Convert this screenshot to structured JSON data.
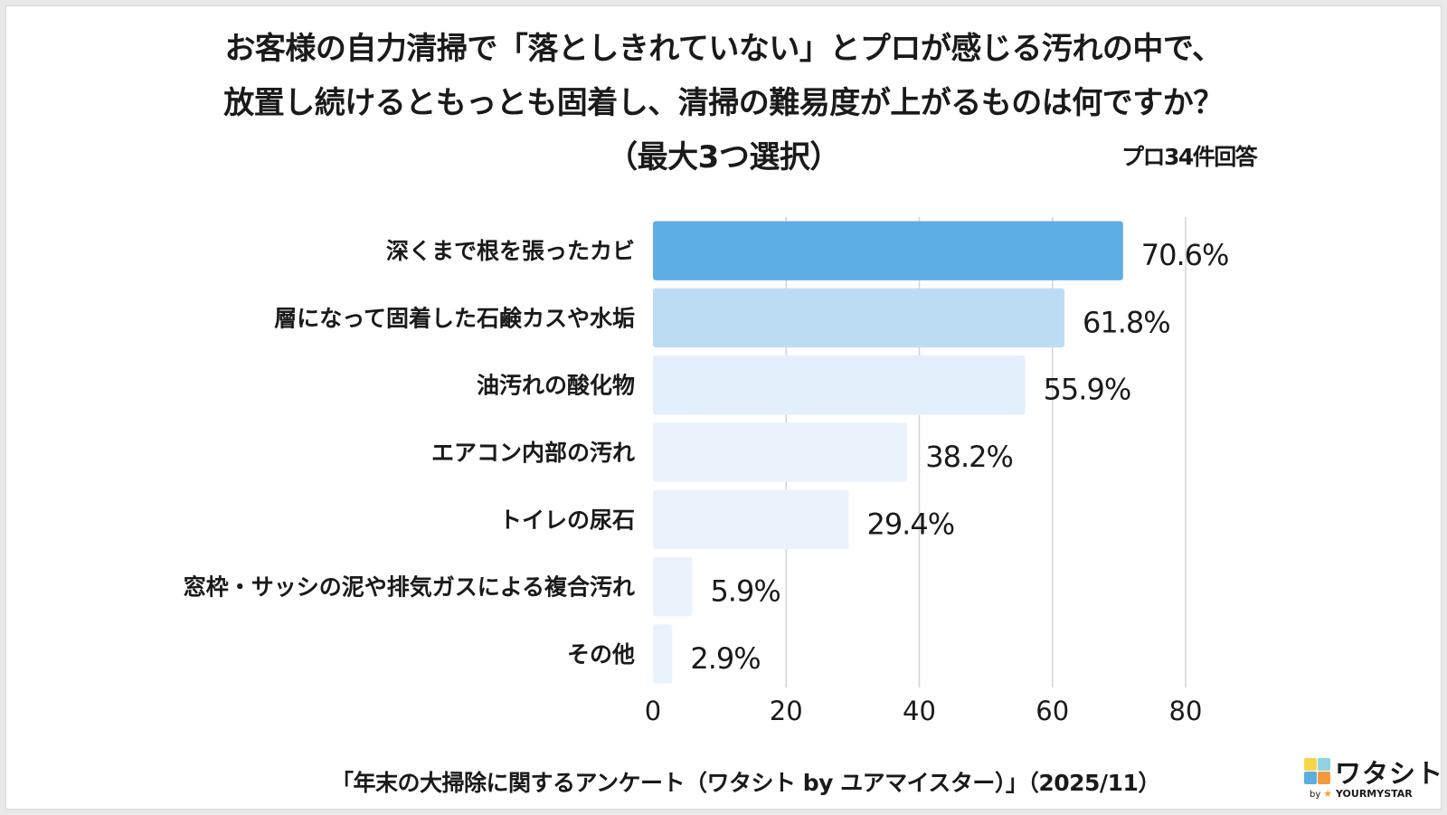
{
  "chart_data": {
    "type": "bar",
    "orientation": "horizontal",
    "title_lines": [
      "お客様の自力清掃で「落としきれていない」とプロが感じる汚れの中で、",
      "放置し続けるともっとも固着し、清掃の難易度が上がるものは何ですか？",
      "（最大3つ選択）"
    ],
    "note": "プロ34件回答",
    "categories": [
      "深くまで根を張ったカビ",
      "層になって固着した石鹸カスや水垢",
      "油汚れの酸化物",
      "エアコン内部の汚れ",
      "トイレの尿石",
      "窓枠・サッシの泥や排気ガスによる複合汚れ",
      "その他"
    ],
    "values": [
      70.6,
      61.8,
      55.9,
      38.2,
      29.4,
      5.9,
      2.9
    ],
    "value_labels": [
      "70.6%",
      "61.8%",
      "55.9%",
      "38.2%",
      "29.4%",
      "5.9%",
      "2.9%"
    ],
    "bar_colors": [
      "#5eaee6",
      "#bcdcf4",
      "#e3f0fb",
      "#eaf3fb",
      "#eaf3fb",
      "#eaf3fb",
      "#eaf3fb"
    ],
    "xlim": [
      0,
      80
    ],
    "xticks": [
      0,
      20,
      40,
      60,
      80
    ],
    "grid": true,
    "xlabel": "",
    "ylabel": ""
  },
  "source": "「年末の大掃除に関するアンケート（ワタシト by ユアマイスター）」（2025/11）",
  "logo": {
    "name": "ワタシト",
    "by": "by",
    "brand": "YOURMYSTAR",
    "colors": [
      "#f7d54a",
      "#8fd3e0",
      "#5aaee0",
      "#f39a3c"
    ]
  }
}
